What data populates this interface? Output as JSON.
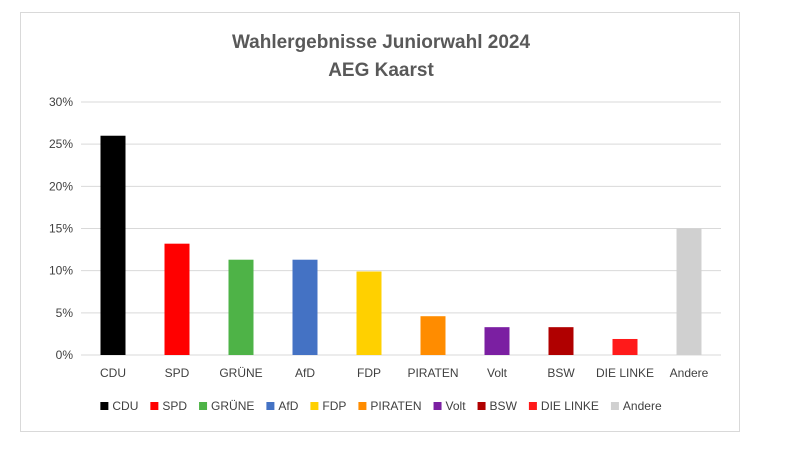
{
  "chart_data": {
    "type": "bar",
    "title": [
      "Wahlergebnisse Juniorwahl 2024",
      "AEG Kaarst"
    ],
    "xlabel": "",
    "ylabel": "",
    "ylim": [
      0,
      30
    ],
    "yticks": [
      "0%",
      "5%",
      "10%",
      "15%",
      "20%",
      "25%",
      "30%"
    ],
    "grid": true,
    "legend_position": "bottom",
    "categories": [
      "CDU",
      "SPD",
      "GRÜNE",
      "AfD",
      "FDP",
      "PIRATEN",
      "Volt",
      "BSW",
      "DIE LINKE",
      "Andere"
    ],
    "values": [
      26.0,
      13.2,
      11.3,
      11.3,
      9.9,
      4.6,
      3.3,
      3.3,
      1.9,
      15.0
    ],
    "colors": [
      "#000000",
      "#ff0000",
      "#4eb347",
      "#4472c4",
      "#ffd000",
      "#ff8c00",
      "#7b1fa2",
      "#b00000",
      "#ff1a1a",
      "#d0d0d0"
    ]
  }
}
